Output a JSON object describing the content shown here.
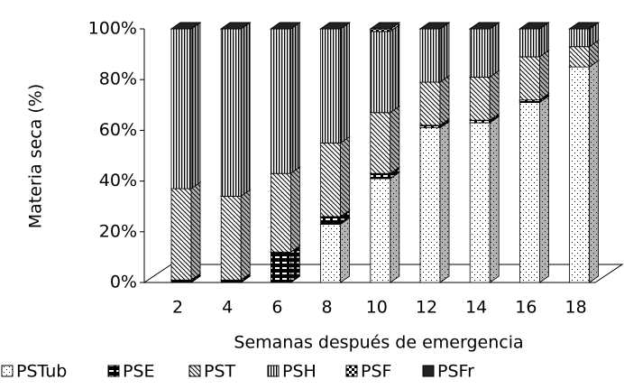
{
  "chart_data": {
    "type": "stacked-bar-3d",
    "x_label": "Semanas después de emergencia",
    "y_label": "Materia seca (%)",
    "categories": [
      "2",
      "4",
      "6",
      "8",
      "10",
      "12",
      "14",
      "16",
      "18"
    ],
    "series": [
      {
        "name": "PSTub",
        "pattern": "dots",
        "values": [
          0,
          0,
          0,
          23,
          41,
          61,
          63,
          71,
          85
        ]
      },
      {
        "name": "PSE",
        "pattern": "dark-band",
        "values": [
          1,
          1,
          12,
          3,
          2,
          1,
          1,
          1,
          0
        ]
      },
      {
        "name": "PST",
        "pattern": "diagonal",
        "values": [
          36,
          33,
          31,
          29,
          24,
          17,
          17,
          17,
          8
        ]
      },
      {
        "name": "PSH",
        "pattern": "vertical",
        "values": [
          63,
          66,
          57,
          45,
          32,
          21,
          19,
          11,
          7
        ]
      },
      {
        "name": "PSF",
        "pattern": "check",
        "values": [
          0,
          0,
          0,
          0,
          1,
          0,
          0,
          0,
          0
        ]
      },
      {
        "name": "PSFr",
        "pattern": "solid-dark",
        "values": [
          0,
          0,
          0,
          0,
          0,
          0,
          0,
          0,
          0
        ]
      }
    ],
    "ylim": [
      0,
      100
    ],
    "yticks": [
      {
        "value": 0,
        "label": "0%"
      },
      {
        "value": 20,
        "label": "20%"
      },
      {
        "value": 40,
        "label": "40%"
      },
      {
        "value": 60,
        "label": "60%"
      },
      {
        "value": 80,
        "label": "80%"
      },
      {
        "value": 100,
        "label": "100%"
      }
    ],
    "legend": "bottom"
  }
}
